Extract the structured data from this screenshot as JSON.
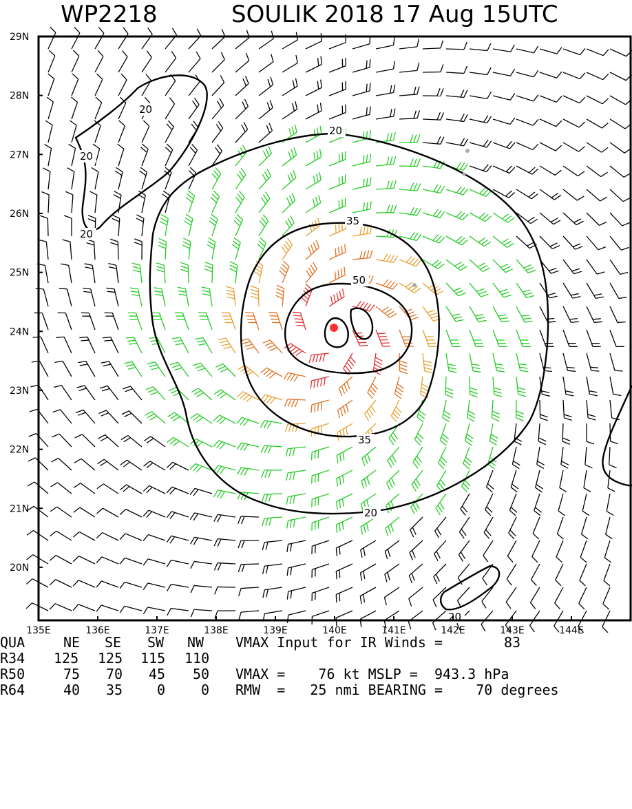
{
  "header": {
    "storm_id": "WP2218",
    "storm_title": "SOULIK 2018 17 Aug 15UTC"
  },
  "map": {
    "lon_range": [
      135,
      145
    ],
    "lat_range": [
      19.1,
      29
    ],
    "lon_ticks": [
      "135E",
      "136E",
      "137E",
      "138E",
      "139E",
      "140E",
      "141E",
      "142E",
      "143E",
      "144E"
    ],
    "lat_ticks": [
      "29N",
      "28N",
      "27N",
      "26N",
      "25N",
      "24N",
      "23N",
      "22N",
      "21N",
      "20N"
    ],
    "contour_labels": {
      "c20_north": "20",
      "c20_south": "20",
      "c20_nw_a": "20",
      "c20_nw_b": "20",
      "c20_nw_c": "20",
      "c20_se": "20",
      "c35_north": "35",
      "c35_south": "35",
      "c50": "50"
    },
    "center": {
      "lon": 140.0,
      "lat": 24.0
    },
    "colors": {
      "barb_low": "#000000",
      "barb_green": "#22cc22",
      "barb_orange": "#e8a030",
      "barb_dorange": "#e07020",
      "barb_red": "#e03030",
      "contour": "#000000",
      "center": "#ff3030",
      "land": "#aaaaaa"
    }
  },
  "stats": {
    "quadrant_header": {
      "qua": "QUA",
      "ne": "NE",
      "se": "SE",
      "sw": "SW",
      "nw": "NW"
    },
    "rows": [
      {
        "label": "R34",
        "ne": "125",
        "se": "125",
        "sw": "115",
        "nw": "110"
      },
      {
        "label": "R50",
        "ne": "75",
        "se": "70",
        "sw": "45",
        "nw": "50"
      },
      {
        "label": "R64",
        "ne": "40",
        "se": "35",
        "sw": "0",
        "nw": "0"
      }
    ],
    "vmax_input_label": "VMAX Input for IR Winds =",
    "vmax_input_value": "83",
    "vmax_line": "VMAX =    76 kt MSLP =  943.3 hPa",
    "rmw_line": "RMW  =   25 nmi BEARING =    70 degrees"
  }
}
